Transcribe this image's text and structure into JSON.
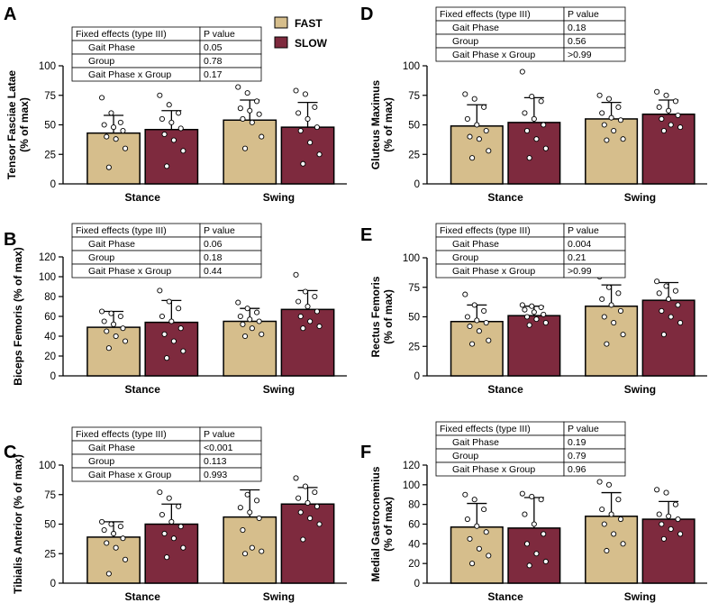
{
  "colors": {
    "fast": "#D6BE8C",
    "slow": "#7E2A3E",
    "axis": "#000000"
  },
  "legend": [
    {
      "name": "FAST",
      "color": "#D6BE8C"
    },
    {
      "name": "SLOW",
      "color": "#7E2A3E"
    }
  ],
  "table_headers": {
    "effects": "Fixed effects (type III)",
    "pvalue": "P value"
  },
  "effect_names": [
    "Gait Phase",
    "Group",
    "Gait Phase x Group"
  ],
  "chart_data": [
    {
      "id": "A",
      "type": "bar",
      "ylabel": [
        "Tensor Fasciae Latae",
        "(% of max)"
      ],
      "ylim": [
        0,
        100
      ],
      "yticks": [
        "0",
        "25",
        "50",
        "75",
        "100"
      ],
      "categories": [
        "Stance",
        "Swing"
      ],
      "series": [
        {
          "name": "FAST",
          "values": [
            43,
            54
          ],
          "sd": [
            15,
            17
          ],
          "points": [
            [
              73,
              60,
              52,
              50,
              48,
              45,
              40,
              38,
              30,
              14
            ],
            [
              82,
              77,
              70,
              64,
              62,
              59,
              55,
              52,
              40,
              30
            ]
          ]
        },
        {
          "name": "SLOW",
          "values": [
            46,
            48
          ],
          "sd": [
            16,
            21
          ],
          "points": [
            [
              75,
              67,
              60,
              55,
              52,
              47,
              42,
              37,
              28,
              15
            ],
            [
              79,
              76,
              65,
              60,
              55,
              48,
              45,
              35,
              25,
              17
            ]
          ]
        }
      ],
      "pvalues": [
        "0.05",
        "0.78",
        "0.17"
      ]
    },
    {
      "id": "B",
      "type": "bar",
      "ylabel": [
        "Biceps Femoris (% of max)"
      ],
      "ylim": [
        0,
        120
      ],
      "yticks": [
        "0",
        "20",
        "40",
        "60",
        "80",
        "100",
        "120"
      ],
      "categories": [
        "Stance",
        "Swing"
      ],
      "series": [
        {
          "name": "FAST",
          "values": [
            49,
            55
          ],
          "sd": [
            16,
            13
          ],
          "points": [
            [
              65,
              63,
              60,
              55,
              52,
              48,
              45,
              40,
              35,
              28
            ],
            [
              74,
              68,
              64,
              60,
              57,
              55,
              52,
              48,
              42,
              40
            ]
          ]
        },
        {
          "name": "SLOW",
          "values": [
            54,
            67
          ],
          "sd": [
            22,
            19
          ],
          "points": [
            [
              86,
              75,
              68,
              60,
              55,
              48,
              42,
              35,
              25,
              18
            ],
            [
              102,
              85,
              80,
              75,
              70,
              65,
              60,
              55,
              50,
              48
            ]
          ]
        }
      ],
      "pvalues": [
        "0.06",
        "0.18",
        "0.44"
      ]
    },
    {
      "id": "C",
      "type": "bar",
      "ylabel": [
        "Tibialis Anterior (% of max)"
      ],
      "ylim": [
        0,
        100
      ],
      "yticks": [
        "0",
        "25",
        "50",
        "75",
        "100"
      ],
      "categories": [
        "Stance",
        "Swing"
      ],
      "series": [
        {
          "name": "FAST",
          "values": [
            39,
            56
          ],
          "sd": [
            13,
            23
          ],
          "points": [
            [
              52,
              50,
              48,
              45,
              42,
              38,
              34,
              30,
              20,
              8
            ],
            [
              97,
              75,
              70,
              64,
              60,
              55,
              45,
              30,
              27,
              25
            ]
          ]
        },
        {
          "name": "SLOW",
          "values": [
            50,
            67
          ],
          "sd": [
            17,
            14
          ],
          "points": [
            [
              77,
              72,
              65,
              58,
              52,
              48,
              42,
              38,
              30,
              22
            ],
            [
              89,
              82,
              77,
              72,
              68,
              65,
              60,
              55,
              50,
              37
            ]
          ]
        }
      ],
      "pvalues": [
        "<0.001",
        "0.113",
        "0.993"
      ]
    },
    {
      "id": "D",
      "type": "bar",
      "ylabel": [
        "Gluteus Maximus",
        "(% of max)"
      ],
      "ylim": [
        0,
        100
      ],
      "yticks": [
        "0",
        "25",
        "50",
        "75",
        "100"
      ],
      "categories": [
        "Stance",
        "Swing"
      ],
      "series": [
        {
          "name": "FAST",
          "values": [
            49,
            55
          ],
          "sd": [
            18,
            14
          ],
          "points": [
            [
              76,
              72,
              65,
              55,
              50,
              45,
              40,
              38,
              28,
              22
            ],
            [
              75,
              72,
              65,
              60,
              56,
              54,
              50,
              45,
              38,
              37
            ]
          ]
        },
        {
          "name": "SLOW",
          "values": [
            52,
            59
          ],
          "sd": [
            21,
            12
          ],
          "points": [
            [
              95,
              74,
              70,
              60,
              55,
              50,
              45,
              38,
              30,
              22
            ],
            [
              78,
              75,
              70,
              65,
              62,
              58,
              55,
              50,
              48,
              45
            ]
          ]
        }
      ],
      "pvalues": [
        "0.18",
        "0.56",
        ">0.99"
      ]
    },
    {
      "id": "E",
      "type": "bar",
      "ylabel": [
        "Rectus Femoris",
        "(% of max)"
      ],
      "ylim": [
        0,
        100
      ],
      "yticks": [
        "0",
        "25",
        "50",
        "75",
        "100"
      ],
      "categories": [
        "Stance",
        "Swing"
      ],
      "series": [
        {
          "name": "FAST",
          "values": [
            46,
            59
          ],
          "sd": [
            14,
            18
          ],
          "points": [
            [
              69,
              60,
              55,
              50,
              47,
              45,
              42,
              38,
              30,
              27
            ],
            [
              84,
              75,
              70,
              65,
              60,
              55,
              50,
              45,
              35,
              27
            ]
          ]
        },
        {
          "name": "SLOW",
          "values": [
            51,
            64
          ],
          "sd": [
            8,
            15
          ],
          "points": [
            [
              60,
              59,
              58,
              56,
              54,
              52,
              50,
              48,
              45,
              43
            ],
            [
              80,
              76,
              72,
              70,
              65,
              60,
              55,
              50,
              45,
              35
            ]
          ]
        }
      ],
      "pvalues": [
        "0.004",
        "0.21",
        ">0.99"
      ]
    },
    {
      "id": "F",
      "type": "bar",
      "ylabel": [
        "Medial Gastrocnemius",
        "(% of max)"
      ],
      "ylim": [
        0,
        120
      ],
      "yticks": [
        "0",
        "20",
        "40",
        "60",
        "80",
        "100",
        "120"
      ],
      "categories": [
        "Stance",
        "Swing"
      ],
      "series": [
        {
          "name": "FAST",
          "values": [
            57,
            68
          ],
          "sd": [
            24,
            24
          ],
          "points": [
            [
              90,
              85,
              75,
              65,
              58,
              52,
              45,
              35,
              28,
              20
            ],
            [
              103,
              100,
              85,
              75,
              70,
              65,
              60,
              50,
              40,
              33
            ]
          ]
        },
        {
          "name": "SLOW",
          "values": [
            56,
            65
          ],
          "sd": [
            31,
            18
          ],
          "points": [
            [
              91,
              88,
              85,
              70,
              60,
              50,
              40,
              30,
              22,
              18
            ],
            [
              95,
              92,
              80,
              70,
              68,
              65,
              60,
              55,
              50,
              45
            ]
          ]
        }
      ],
      "pvalues": [
        "0.19",
        "0.79",
        "0.96"
      ]
    }
  ]
}
